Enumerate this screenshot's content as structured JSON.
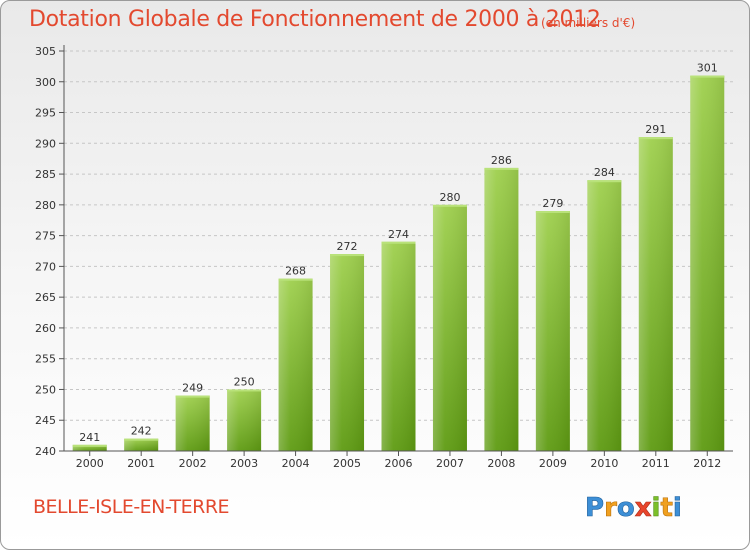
{
  "title": "Dotation Globale de Fonctionnement de 2000 à 2012",
  "subtitle": "(en milliers d'€)",
  "commune": "BELLE-ISLE-EN-TERRE",
  "logo": "Proxiti",
  "colors": {
    "title": "#e3492f",
    "bar_top": "#9fd04e",
    "bar_bottom": "#5e9b12"
  },
  "chart_data": {
    "type": "bar",
    "categories": [
      "2000",
      "2001",
      "2002",
      "2003",
      "2004",
      "2005",
      "2006",
      "2007",
      "2008",
      "2009",
      "2010",
      "2011",
      "2012"
    ],
    "values": [
      241,
      242,
      249,
      250,
      268,
      272,
      274,
      280,
      286,
      279,
      284,
      291,
      301
    ],
    "ylim": [
      240,
      305
    ],
    "yticks": [
      240,
      245,
      250,
      255,
      260,
      265,
      270,
      275,
      280,
      285,
      290,
      295,
      300,
      305
    ],
    "grid": true
  }
}
